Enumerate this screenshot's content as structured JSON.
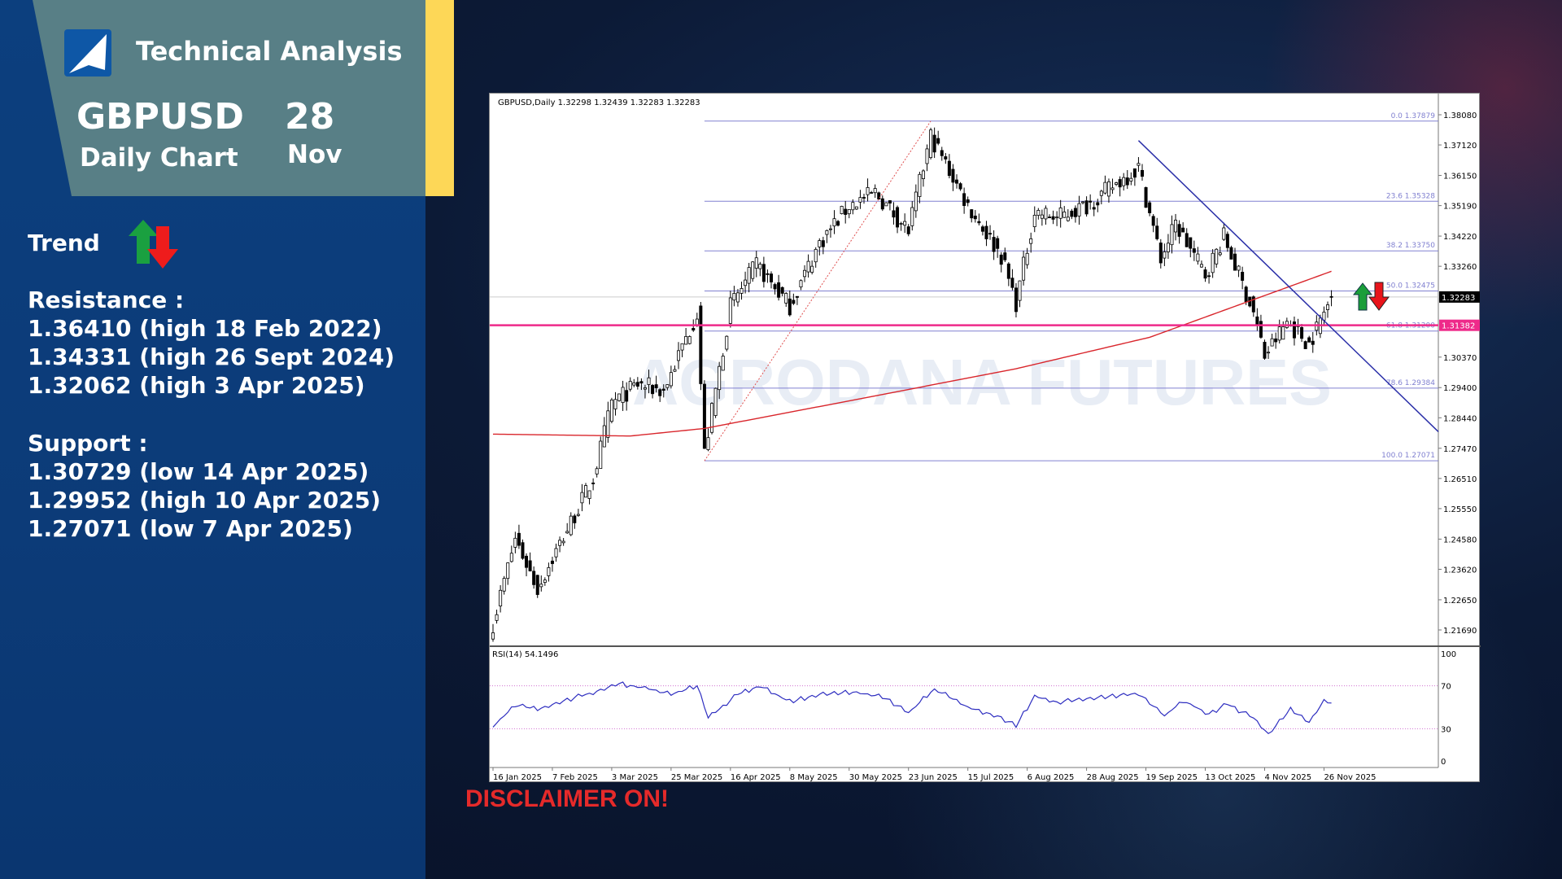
{
  "header": {
    "title": "Technical Analysis",
    "symbol": "GBPUSD",
    "timeframe": "Daily Chart",
    "day": "28",
    "month": "Nov"
  },
  "trend": {
    "label": "Trend",
    "icons": [
      "arrow-up-green",
      "arrow-down-red"
    ]
  },
  "resistance": {
    "title": "Resistance :",
    "levels": [
      "1.36410 (high 18 Feb 2022)",
      "1.34331 (high 26 Sept 2024)",
      "1.32062 (high 3 Apr 2025)"
    ]
  },
  "support": {
    "title": "Support :",
    "levels": [
      "1.30729 (low 14 Apr 2025)",
      "1.29952 (high 10 Apr 2025)",
      "1.27071 (low 7 Apr 2025)"
    ]
  },
  "disclaimer": "DISCLAIMER ON!",
  "colors": {
    "up": "#1a9e3a",
    "down": "#e8141b",
    "ma": "#d9262c",
    "trendline": "#2a2fa8",
    "fib": "#8080d0",
    "support_line": "#ee2a8a",
    "card": "#587f86",
    "accent": "#fdd757"
  },
  "chart_data": {
    "type": "candlestick",
    "header": "GBPUSD,Daily  1.32298 1.32439 1.32283 1.32283",
    "watermark": "AGRODANA FUTURES",
    "ylim": [
      1.215,
      1.383
    ],
    "y_ticks": [
      "1.38080",
      "1.37120",
      "1.36150",
      "1.35190",
      "1.34220",
      "1.33260",
      "1.32283",
      "1.31382",
      "1.30370",
      "1.29400",
      "1.28440",
      "1.27470",
      "1.26510",
      "1.25550",
      "1.24580",
      "1.23620",
      "1.22650",
      "1.21690"
    ],
    "x_ticks": [
      "16 Jan 2025",
      "7 Feb 2025",
      "3 Mar 2025",
      "25 Mar 2025",
      "16 Apr 2025",
      "8 May 2025",
      "30 May 2025",
      "23 Jun 2025",
      "15 Jul 2025",
      "6 Aug 2025",
      "28 Aug 2025",
      "19 Sep 2025",
      "13 Oct 2025",
      "4 Nov 2025",
      "26 Nov 2025"
    ],
    "x_tick_dates": [
      "2025-01-16",
      "2025-02-07",
      "2025-03-03",
      "2025-03-25",
      "2025-04-16",
      "2025-05-08",
      "2025-05-30",
      "2025-06-23",
      "2025-07-15",
      "2025-08-06",
      "2025-08-28",
      "2025-09-19",
      "2025-10-13",
      "2025-11-04",
      "2025-11-26"
    ],
    "date_range": [
      "2025-01-16",
      "2025-11-28"
    ],
    "close_path": [
      [
        "2025-01-16",
        1.219
      ],
      [
        "2025-01-24",
        1.246
      ],
      [
        "2025-02-03",
        1.23
      ],
      [
        "2025-02-10",
        1.242
      ],
      [
        "2025-02-24",
        1.265
      ],
      [
        "2025-03-03",
        1.289
      ],
      [
        "2025-03-12",
        1.295
      ],
      [
        "2025-03-21",
        1.293
      ],
      [
        "2025-04-03",
        1.318
      ],
      [
        "2025-04-07",
        1.273
      ],
      [
        "2025-04-16",
        1.32
      ],
      [
        "2025-04-25",
        1.333
      ],
      [
        "2025-05-08",
        1.32
      ],
      [
        "2025-05-20",
        1.34
      ],
      [
        "2025-05-30",
        1.352
      ],
      [
        "2025-06-10",
        1.356
      ],
      [
        "2025-06-23",
        1.344
      ],
      [
        "2025-07-01",
        1.374
      ],
      [
        "2025-07-15",
        1.352
      ],
      [
        "2025-07-28",
        1.336
      ],
      [
        "2025-08-01",
        1.321
      ],
      [
        "2025-08-08",
        1.35
      ],
      [
        "2025-08-18",
        1.348
      ],
      [
        "2025-08-28",
        1.352
      ],
      [
        "2025-09-17",
        1.364
      ],
      [
        "2025-09-25",
        1.335
      ],
      [
        "2025-10-01",
        1.346
      ],
      [
        "2025-10-13",
        1.33
      ],
      [
        "2025-10-20",
        1.342
      ],
      [
        "2025-10-30",
        1.318
      ],
      [
        "2025-11-04",
        1.304
      ],
      [
        "2025-11-12",
        1.315
      ],
      [
        "2025-11-20",
        1.308
      ],
      [
        "2025-11-28",
        1.3228
      ]
    ],
    "ma200": {
      "label": "",
      "points": [
        [
          "2025-01-16",
          1.2792
        ],
        [
          "2025-03-10",
          1.2786
        ],
        [
          "2025-04-07",
          1.281
        ],
        [
          "2025-06-01",
          1.29
        ],
        [
          "2025-08-01",
          1.3
        ],
        [
          "2025-09-20",
          1.31
        ],
        [
          "2025-10-30",
          1.322
        ],
        [
          "2025-11-28",
          1.331
        ]
      ]
    },
    "fibonacci": {
      "from_date": "2025-04-07",
      "levels": [
        {
          "pct": "0.0",
          "price": 1.37879
        },
        {
          "pct": "23.6",
          "price": 1.35328
        },
        {
          "pct": "38.2",
          "price": 1.3375
        },
        {
          "pct": "50.0",
          "price": 1.32475
        },
        {
          "pct": "61.8",
          "price": 1.312
        },
        {
          "pct": "78.6",
          "price": 1.29384
        },
        {
          "pct": "100.0",
          "price": 1.27071
        }
      ]
    },
    "trendline": [
      [
        "2025-09-17",
        1.3726
      ],
      [
        "2025-11-28",
        1.313
      ]
    ],
    "fib_anchor_line": [
      [
        "2025-04-07",
        1.2707
      ],
      [
        "2025-07-01",
        1.3788
      ]
    ],
    "horizontal_line": {
      "price": 1.31382,
      "label": "1.31382"
    },
    "current_price": {
      "price": 1.32283,
      "label": "1.32283"
    },
    "rsi": {
      "label": "RSI(14) 54.1496",
      "levels": [
        70,
        30
      ],
      "ticks": [
        "100",
        "70",
        "30",
        "0"
      ],
      "path": [
        [
          "2025-01-16",
          32
        ],
        [
          "2025-01-24",
          52
        ],
        [
          "2025-02-03",
          48
        ],
        [
          "2025-02-12",
          56
        ],
        [
          "2025-02-25",
          65
        ],
        [
          "2025-03-05",
          72
        ],
        [
          "2025-03-14",
          68
        ],
        [
          "2025-03-25",
          62
        ],
        [
          "2025-04-03",
          70
        ],
        [
          "2025-04-08",
          40
        ],
        [
          "2025-04-18",
          62
        ],
        [
          "2025-04-28",
          70
        ],
        [
          "2025-05-08",
          55
        ],
        [
          "2025-05-20",
          62
        ],
        [
          "2025-06-02",
          64
        ],
        [
          "2025-06-12",
          60
        ],
        [
          "2025-06-23",
          45
        ],
        [
          "2025-07-02",
          67
        ],
        [
          "2025-07-15",
          50
        ],
        [
          "2025-07-25",
          42
        ],
        [
          "2025-08-01",
          33
        ],
        [
          "2025-08-08",
          60
        ],
        [
          "2025-08-18",
          55
        ],
        [
          "2025-08-28",
          58
        ],
        [
          "2025-09-17",
          63
        ],
        [
          "2025-09-26",
          42
        ],
        [
          "2025-10-03",
          56
        ],
        [
          "2025-10-14",
          44
        ],
        [
          "2025-10-21",
          53
        ],
        [
          "2025-10-30",
          40
        ],
        [
          "2025-11-05",
          25
        ],
        [
          "2025-11-13",
          48
        ],
        [
          "2025-11-20",
          36
        ],
        [
          "2025-11-26",
          56
        ],
        [
          "2025-11-28",
          54
        ]
      ]
    }
  }
}
